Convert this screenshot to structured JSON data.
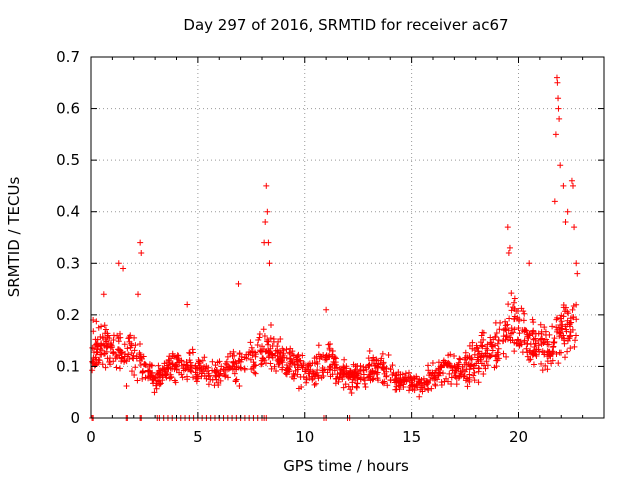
{
  "chart_data": {
    "type": "scatter",
    "title": "Day 297 of 2016, SRMTID for receiver ac67",
    "xlabel": "GPS time / hours",
    "ylabel": "SRMTID / TECUs",
    "xlim": [
      0,
      24
    ],
    "ylim": [
      0,
      0.7
    ],
    "xticks": [
      0,
      5,
      10,
      15,
      20
    ],
    "yticks": [
      0,
      0.1,
      0.2,
      0.3,
      0.4,
      0.5,
      0.6,
      0.7
    ],
    "xtick_labels": [
      "0",
      "5",
      "10",
      "15",
      "20"
    ],
    "ytick_labels": [
      "0",
      "0.1",
      "0.2",
      "0.3",
      "0.4",
      "0.5",
      "0.6",
      "0.7"
    ],
    "grid": true,
    "legend": "none",
    "series": [
      {
        "name": "SRMTID",
        "color": "#ff0000",
        "marker": "plus",
        "trend": [
          [
            0.0,
            0.13
          ],
          [
            0.5,
            0.14
          ],
          [
            1.0,
            0.13
          ],
          [
            1.5,
            0.12
          ],
          [
            2.0,
            0.13
          ],
          [
            2.5,
            0.1
          ],
          [
            3.0,
            0.07
          ],
          [
            3.5,
            0.09
          ],
          [
            4.0,
            0.1
          ],
          [
            4.5,
            0.1
          ],
          [
            5.0,
            0.09
          ],
          [
            5.5,
            0.08
          ],
          [
            6.0,
            0.09
          ],
          [
            6.5,
            0.1
          ],
          [
            7.0,
            0.1
          ],
          [
            7.5,
            0.11
          ],
          [
            8.0,
            0.13
          ],
          [
            8.5,
            0.13
          ],
          [
            9.0,
            0.11
          ],
          [
            9.5,
            0.1
          ],
          [
            10.0,
            0.09
          ],
          [
            10.5,
            0.09
          ],
          [
            11.0,
            0.11
          ],
          [
            11.5,
            0.1
          ],
          [
            12.0,
            0.08
          ],
          [
            12.5,
            0.08
          ],
          [
            13.0,
            0.09
          ],
          [
            13.5,
            0.09
          ],
          [
            14.0,
            0.08
          ],
          [
            14.5,
            0.07
          ],
          [
            15.0,
            0.07
          ],
          [
            15.5,
            0.06
          ],
          [
            16.0,
            0.08
          ],
          [
            16.5,
            0.09
          ],
          [
            17.0,
            0.1
          ],
          [
            17.5,
            0.1
          ],
          [
            18.0,
            0.11
          ],
          [
            18.5,
            0.13
          ],
          [
            19.0,
            0.14
          ],
          [
            19.5,
            0.18
          ],
          [
            20.0,
            0.17
          ],
          [
            20.5,
            0.15
          ],
          [
            21.0,
            0.14
          ],
          [
            21.5,
            0.13
          ],
          [
            22.0,
            0.18
          ],
          [
            22.5,
            0.17
          ]
        ],
        "spikes": [
          [
            0.1,
            0.19
          ],
          [
            0.6,
            0.24
          ],
          [
            1.3,
            0.3
          ],
          [
            1.5,
            0.29
          ],
          [
            2.2,
            0.24
          ],
          [
            2.3,
            0.34
          ],
          [
            2.35,
            0.32
          ],
          [
            4.5,
            0.22
          ],
          [
            6.9,
            0.26
          ],
          [
            8.1,
            0.34
          ],
          [
            8.15,
            0.38
          ],
          [
            8.2,
            0.45
          ],
          [
            8.25,
            0.4
          ],
          [
            8.3,
            0.34
          ],
          [
            8.35,
            0.3
          ],
          [
            11.0,
            0.21
          ],
          [
            19.5,
            0.37
          ],
          [
            19.55,
            0.32
          ],
          [
            19.6,
            0.33
          ],
          [
            20.5,
            0.3
          ],
          [
            21.7,
            0.42
          ],
          [
            21.75,
            0.55
          ],
          [
            21.8,
            0.66
          ],
          [
            21.82,
            0.65
          ],
          [
            21.85,
            0.62
          ],
          [
            21.87,
            0.6
          ],
          [
            21.9,
            0.58
          ],
          [
            21.95,
            0.49
          ],
          [
            22.1,
            0.45
          ],
          [
            22.2,
            0.38
          ],
          [
            22.3,
            0.4
          ],
          [
            22.5,
            0.46
          ],
          [
            22.55,
            0.45
          ],
          [
            22.6,
            0.37
          ],
          [
            22.7,
            0.3
          ],
          [
            22.75,
            0.28
          ]
        ],
        "zero_points": [
          0.05,
          0.1,
          1.65,
          1.7,
          2.3,
          2.35,
          3.1,
          3.2,
          3.4,
          3.6,
          3.8,
          4.0,
          4.2,
          4.4,
          4.6,
          4.8,
          5.0,
          5.2,
          5.4,
          5.6,
          5.8,
          6.0,
          6.2,
          6.4,
          6.6,
          6.8,
          7.0,
          7.2,
          7.4,
          7.6,
          7.8,
          8.0,
          8.1,
          8.2,
          10.9,
          11.0,
          12.0,
          12.1
        ]
      }
    ]
  }
}
